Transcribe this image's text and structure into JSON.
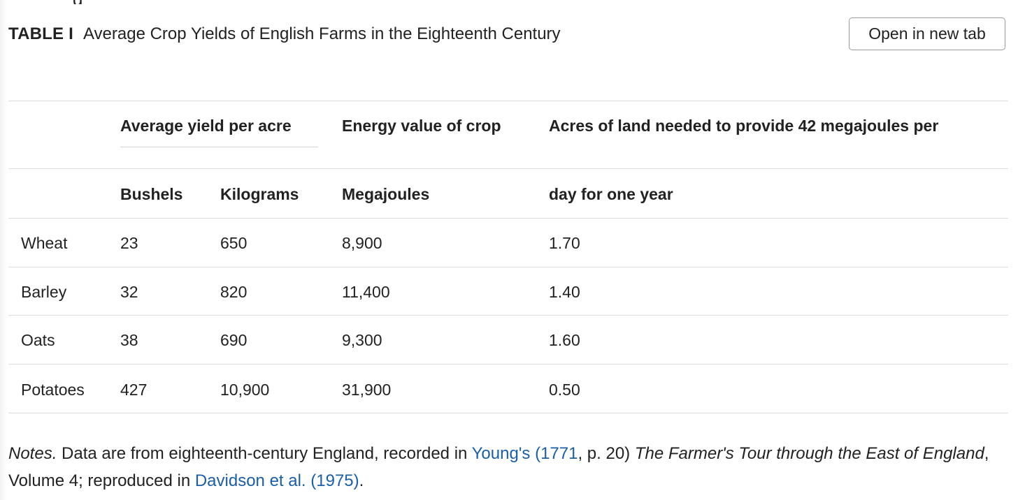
{
  "caption": {
    "label": "TABLE I",
    "title": "Average Crop Yields of English Farms in the Eighteenth Century"
  },
  "open_button": "Open in new tab",
  "table": {
    "group_headers": {
      "average_yield": "Average yield per acre",
      "energy_value": "Energy value of crop",
      "acres_needed": "Acres of land needed to provide 42 megajoules per"
    },
    "sub_headers": {
      "bushels": "Bushels",
      "kilograms": "Kilograms",
      "megajoules": "Megajoules",
      "acres_cont": "day for one year"
    },
    "rows": [
      {
        "crop": "Wheat",
        "bushels": "23",
        "kilograms": "650",
        "megajoules": "8,900",
        "acres": "1.70"
      },
      {
        "crop": "Barley",
        "bushels": "32",
        "kilograms": "820",
        "megajoules": "11,400",
        "acres": "1.40"
      },
      {
        "crop": "Oats",
        "bushels": "38",
        "kilograms": "690",
        "megajoules": "9,300",
        "acres": "1.60"
      },
      {
        "crop": "Potatoes",
        "bushels": "427",
        "kilograms": "10,900",
        "megajoules": "31,900",
        "acres": "0.50"
      }
    ]
  },
  "notes": {
    "prefix": "Notes.",
    "text1": " Data are from eighteenth-century England, recorded in ",
    "link1": "Young's (1771",
    "text2": ", p. 20) ",
    "book_title": "The Farmer's Tour through the East of England",
    "text3": ", Volume 4; reproduced in ",
    "link2": "Davidson et al. (1975)",
    "text4": "."
  },
  "colors": {
    "link": "#1a5fa8",
    "rule": "#dcdcdc",
    "text": "#222222"
  }
}
